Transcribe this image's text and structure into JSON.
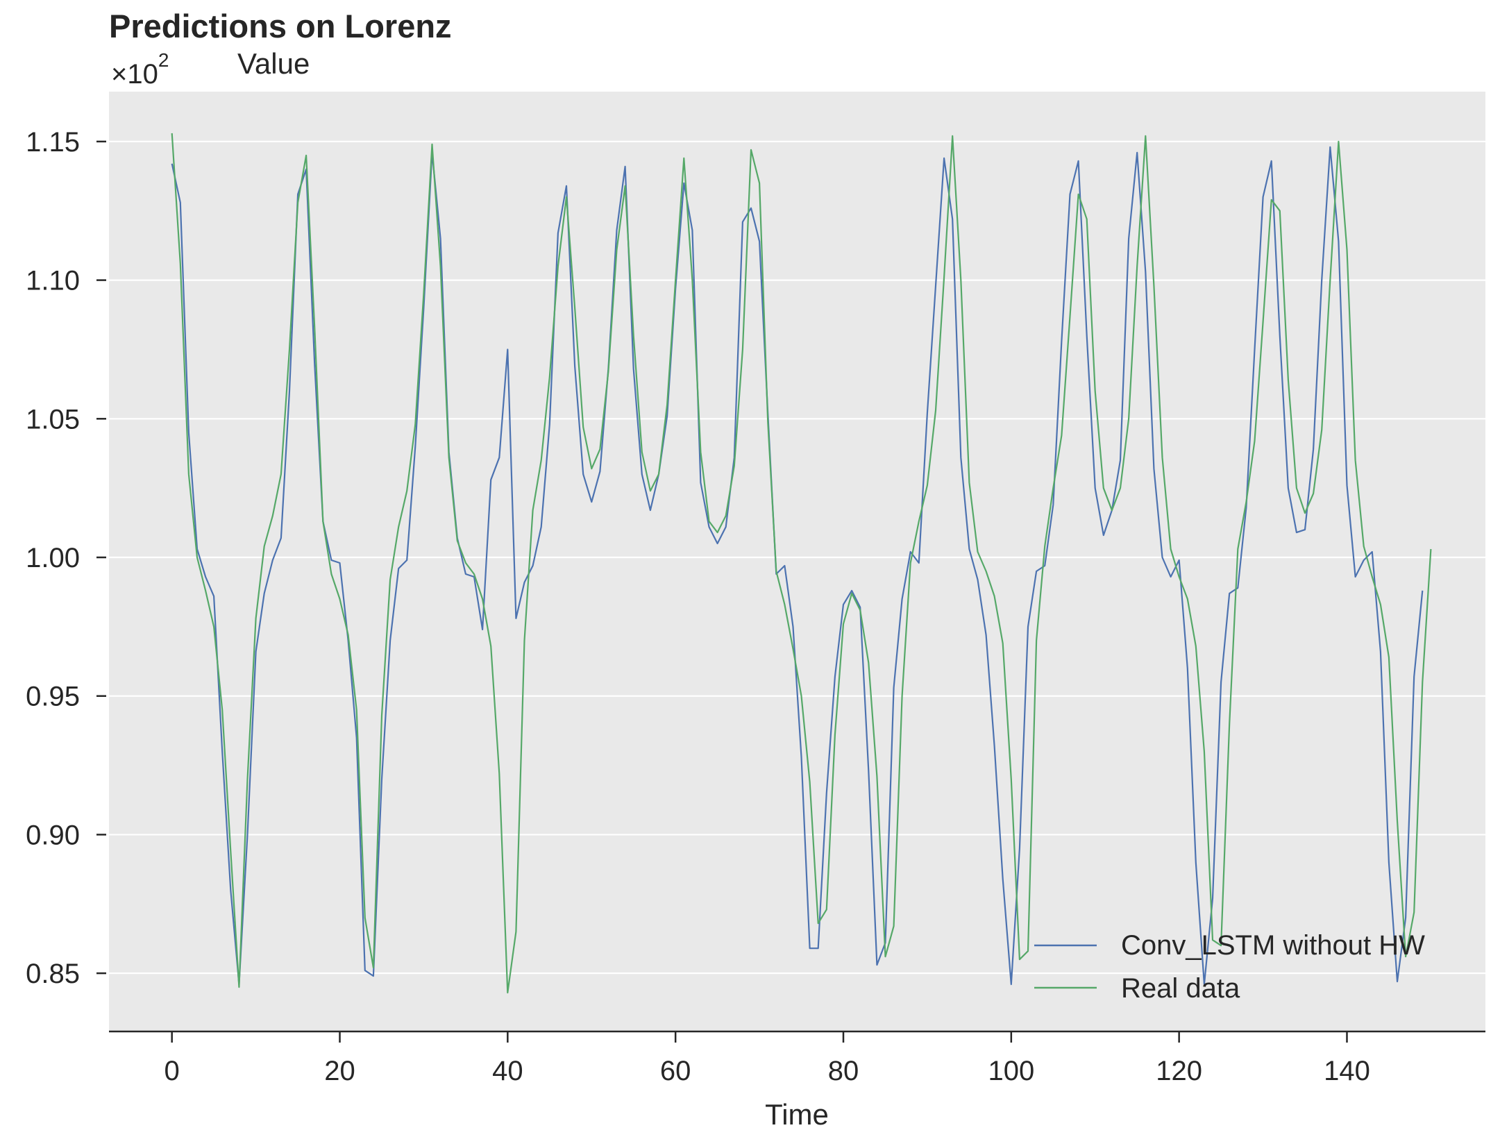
{
  "chart_data": {
    "type": "line",
    "title": "Predictions on Lorenz",
    "ylabel": "Value",
    "xlabel": "Time",
    "y_scale_label": "×10",
    "y_scale_exponent": "2",
    "xlim": [
      -7.5,
      156.5
    ],
    "ylim": [
      0.829,
      1.168
    ],
    "xticks": [
      0,
      20,
      40,
      60,
      80,
      100,
      120,
      140
    ],
    "xtick_labels": [
      "0",
      "20",
      "40",
      "60",
      "80",
      "100",
      "120",
      "140"
    ],
    "yticks": [
      0.85,
      0.9,
      0.95,
      1.0,
      1.05,
      1.1,
      1.15
    ],
    "ytick_labels": [
      "0.85",
      "0.90",
      "0.95",
      "1.00",
      "1.05",
      "1.10",
      "1.15"
    ],
    "grid": true,
    "legend_position": "lower-right",
    "background_color": "#e9e9e9",
    "series": [
      {
        "name": "Conv_LSTM without HW",
        "color": "#4c72b0",
        "values": [
          1.142,
          1.128,
          1.045,
          1.003,
          0.993,
          0.986,
          0.93,
          0.88,
          0.846,
          0.9,
          0.966,
          0.987,
          0.999,
          1.007,
          1.06,
          1.131,
          1.14,
          1.07,
          1.013,
          0.999,
          0.998,
          0.97,
          0.935,
          0.851,
          0.849,
          0.92,
          0.97,
          0.996,
          0.999,
          1.04,
          1.09,
          1.146,
          1.115,
          1.038,
          1.007,
          0.994,
          0.993,
          0.974,
          1.028,
          1.036,
          1.075,
          0.978,
          0.991,
          0.997,
          1.011,
          1.048,
          1.117,
          1.134,
          1.069,
          1.03,
          1.02,
          1.031,
          1.068,
          1.118,
          1.141,
          1.068,
          1.03,
          1.017,
          1.03,
          1.051,
          1.097,
          1.135,
          1.118,
          1.027,
          1.011,
          1.005,
          1.011,
          1.036,
          1.121,
          1.126,
          1.114,
          1.052,
          0.994,
          0.997,
          0.975,
          0.928,
          0.859,
          0.859,
          0.915,
          0.957,
          0.983,
          0.988,
          0.982,
          0.923,
          0.853,
          0.861,
          0.953,
          0.985,
          1.002,
          0.998,
          1.052,
          1.098,
          1.144,
          1.122,
          1.036,
          1.003,
          0.992,
          0.972,
          0.932,
          0.884,
          0.846,
          0.895,
          0.975,
          0.995,
          0.997,
          1.019,
          1.078,
          1.131,
          1.143,
          1.08,
          1.025,
          1.008,
          1.017,
          1.035,
          1.115,
          1.146,
          1.103,
          1.032,
          1.0,
          0.993,
          0.999,
          0.96,
          0.89,
          0.846,
          0.877,
          0.955,
          0.987,
          0.989,
          1.018,
          1.075,
          1.13,
          1.143,
          1.08,
          1.025,
          1.009,
          1.01,
          1.039,
          1.1,
          1.148,
          1.114,
          1.026,
          0.993,
          0.999,
          1.002,
          0.966,
          0.89,
          0.847,
          0.87,
          0.957,
          0.988
        ]
      },
      {
        "name": "Real data",
        "color": "#55a868",
        "values": [
          1.153,
          1.106,
          1.03,
          1.0,
          0.988,
          0.975,
          0.945,
          0.894,
          0.845,
          0.92,
          0.978,
          1.004,
          1.015,
          1.03,
          1.075,
          1.128,
          1.145,
          1.083,
          1.013,
          0.994,
          0.985,
          0.972,
          0.945,
          0.87,
          0.852,
          0.943,
          0.992,
          1.011,
          1.024,
          1.048,
          1.095,
          1.149,
          1.105,
          1.036,
          1.006,
          0.998,
          0.994,
          0.985,
          0.968,
          0.922,
          0.843,
          0.865,
          0.97,
          1.017,
          1.035,
          1.065,
          1.105,
          1.13,
          1.09,
          1.047,
          1.032,
          1.039,
          1.067,
          1.111,
          1.134,
          1.08,
          1.038,
          1.024,
          1.03,
          1.055,
          1.1,
          1.144,
          1.1,
          1.038,
          1.013,
          1.009,
          1.015,
          1.033,
          1.075,
          1.147,
          1.135,
          1.049,
          0.995,
          0.983,
          0.967,
          0.95,
          0.919,
          0.868,
          0.873,
          0.936,
          0.976,
          0.987,
          0.981,
          0.962,
          0.921,
          0.856,
          0.867,
          0.95,
          0.998,
          1.013,
          1.026,
          1.053,
          1.101,
          1.152,
          1.1,
          1.027,
          1.002,
          0.995,
          0.986,
          0.969,
          0.92,
          0.855,
          0.858,
          0.97,
          1.004,
          1.025,
          1.044,
          1.087,
          1.131,
          1.122,
          1.06,
          1.025,
          1.017,
          1.025,
          1.05,
          1.105,
          1.152,
          1.098,
          1.036,
          1.003,
          0.993,
          0.985,
          0.968,
          0.93,
          0.862,
          0.86,
          0.94,
          1.003,
          1.02,
          1.042,
          1.085,
          1.129,
          1.125,
          1.064,
          1.025,
          1.016,
          1.023,
          1.046,
          1.1,
          1.15,
          1.111,
          1.035,
          1.004,
          0.993,
          0.983,
          0.964,
          0.905,
          0.856,
          0.872,
          0.955,
          1.003
        ]
      }
    ]
  }
}
